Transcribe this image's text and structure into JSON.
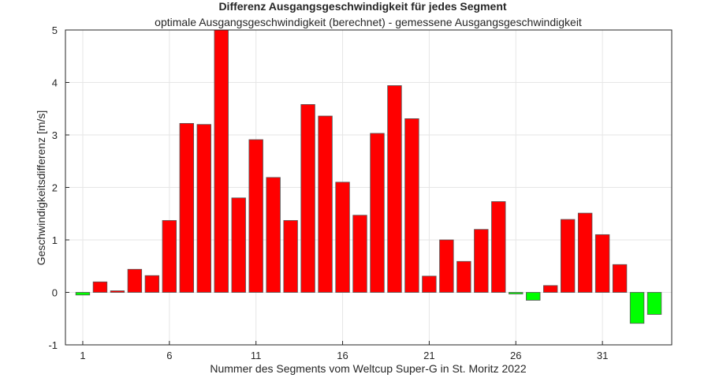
{
  "chart_data": {
    "type": "bar",
    "title": "Differenz Ausgangsgeschwindigkeit für jedes Segment",
    "subtitle": "optimale Ausgangsgeschwindigkeit (berechnet) - gemessene Ausgangsgeschwindigkeit",
    "xlabel": "Nummer des Segments vom Weltcup Super-G in St. Moritz 2022",
    "ylabel": "Geschwindigkeitsdifferenz [m/s]",
    "xlim": [
      0,
      35
    ],
    "ylim": [
      -1,
      5
    ],
    "xticks": [
      1,
      6,
      11,
      16,
      21,
      26,
      31
    ],
    "yticks": [
      -1,
      0,
      1,
      2,
      3,
      4,
      5
    ],
    "grid": true,
    "x": [
      1,
      2,
      3,
      4,
      5,
      6,
      7,
      8,
      9,
      10,
      11,
      12,
      13,
      14,
      15,
      16,
      17,
      18,
      19,
      20,
      21,
      22,
      23,
      24,
      25,
      26,
      27,
      28,
      29,
      30,
      31,
      32,
      33,
      34
    ],
    "values": [
      -0.05,
      0.2,
      0.03,
      0.44,
      0.32,
      1.37,
      3.22,
      3.2,
      5.0,
      1.8,
      2.91,
      2.19,
      1.37,
      3.58,
      3.36,
      2.1,
      1.47,
      3.03,
      3.94,
      3.31,
      0.31,
      1.0,
      0.59,
      1.2,
      1.73,
      -0.03,
      -0.15,
      0.13,
      1.39,
      1.51,
      1.1,
      0.53,
      -0.59,
      -0.42
    ],
    "colors": {
      "positive": "#ff0000",
      "negative": "#00ff00"
    }
  }
}
